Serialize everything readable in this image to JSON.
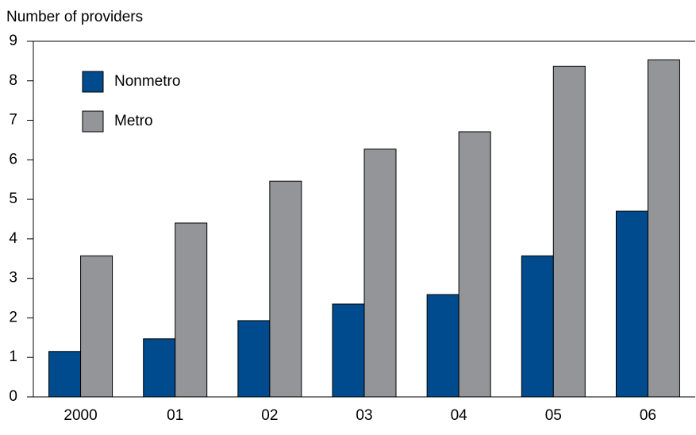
{
  "chart_data": {
    "type": "bar",
    "y_label": "Number of providers",
    "categories": [
      "2000",
      "01",
      "02",
      "03",
      "04",
      "05",
      "06"
    ],
    "series": [
      {
        "name": "Nonmetro",
        "color": "#004b8d",
        "values": [
          1.15,
          1.47,
          1.93,
          2.35,
          2.59,
          3.57,
          4.7
        ]
      },
      {
        "name": "Metro",
        "color": "#939598",
        "values": [
          3.57,
          4.4,
          5.46,
          6.27,
          6.71,
          8.37,
          8.53
        ]
      }
    ],
    "ylim": [
      0,
      9
    ],
    "yticks": [
      0,
      1,
      2,
      3,
      4,
      5,
      6,
      7,
      8,
      9
    ],
    "legend": "upper left"
  }
}
